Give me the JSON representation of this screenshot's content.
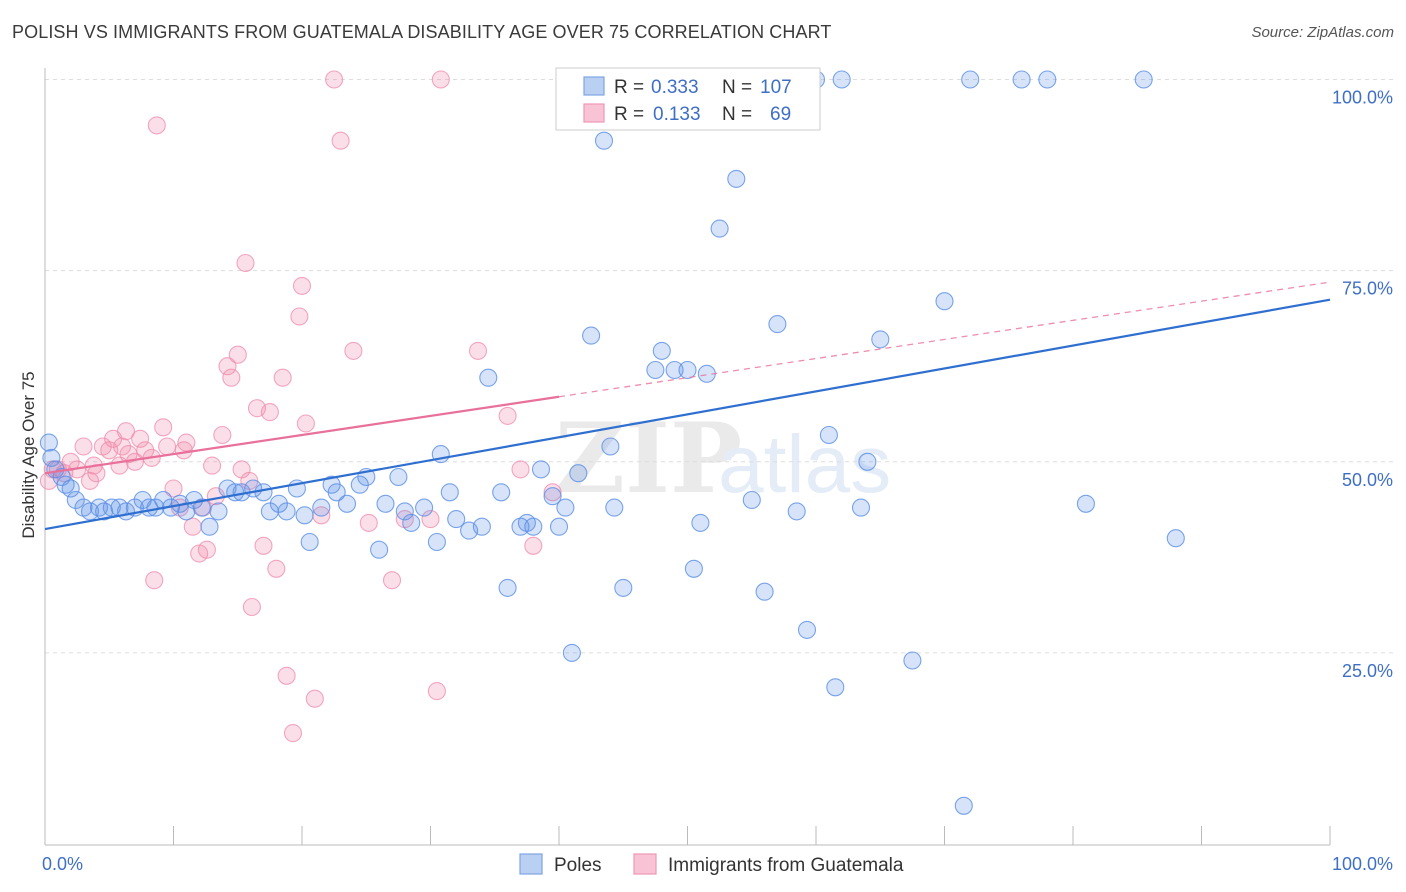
{
  "title": "POLISH VS IMMIGRANTS FROM GUATEMALA DISABILITY AGE OVER 75 CORRELATION CHART",
  "source": "Source: ZipAtlas.com",
  "watermark": {
    "zip": "ZIP",
    "atlas": "atlas"
  },
  "colors": {
    "poles": "#5a8ee6",
    "guatemala": "#f08bab",
    "poles_line": "#2f6fd0",
    "guatemala_line": "#e8709a"
  },
  "legend": {
    "r_label": "R =",
    "n_label": "N =",
    "rows": [
      {
        "r": "0.333",
        "n": "107"
      },
      {
        "r": "0.133",
        "n": "69"
      }
    ]
  },
  "chart_data": {
    "type": "scatter",
    "title": "POLISH VS IMMIGRANTS FROM GUATEMALA DISABILITY AGE OVER 75 CORRELATION CHART",
    "xlabel": "",
    "ylabel": "Disability Age Over 75",
    "xlim": [
      0,
      100
    ],
    "ylim": [
      0,
      100
    ],
    "x_tick_labels": [
      "0.0%",
      "100.0%"
    ],
    "y_ticks": [
      25,
      50,
      75,
      100
    ],
    "y_tick_labels": [
      "25.0%",
      "50.0%",
      "75.0%",
      "100.0%"
    ],
    "grid": true,
    "legend_position": "top-center",
    "series": [
      {
        "name": "Poles",
        "r": 0.333,
        "n": 107,
        "trend": {
          "x0": 0,
          "y0": 41.2,
          "x1": 100,
          "y1": 71.2
        },
        "points": [
          [
            0.3,
            52.5
          ],
          [
            0.5,
            50.5
          ],
          [
            0.8,
            49
          ],
          [
            1.3,
            48
          ],
          [
            1.6,
            47
          ],
          [
            2,
            46.5
          ],
          [
            2.4,
            45
          ],
          [
            3,
            44
          ],
          [
            3.5,
            43.5
          ],
          [
            4.2,
            44
          ],
          [
            4.6,
            43.5
          ],
          [
            5.2,
            44
          ],
          [
            5.8,
            44
          ],
          [
            6.3,
            43.5
          ],
          [
            7,
            44
          ],
          [
            7.6,
            45
          ],
          [
            8.1,
            44
          ],
          [
            8.6,
            44
          ],
          [
            9.2,
            45
          ],
          [
            9.8,
            44
          ],
          [
            10.5,
            44.5
          ],
          [
            11,
            43.5
          ],
          [
            11.6,
            45
          ],
          [
            12.2,
            44
          ],
          [
            12.8,
            41.5
          ],
          [
            13.5,
            43.5
          ],
          [
            14.2,
            46.5
          ],
          [
            14.8,
            46
          ],
          [
            15.3,
            46
          ],
          [
            16.2,
            46.5
          ],
          [
            17,
            46
          ],
          [
            17.5,
            43.5
          ],
          [
            18.2,
            44.5
          ],
          [
            18.8,
            43.5
          ],
          [
            19.6,
            46.5
          ],
          [
            20.2,
            43
          ],
          [
            20.6,
            39.5
          ],
          [
            21.5,
            44
          ],
          [
            22.3,
            47
          ],
          [
            22.7,
            46
          ],
          [
            23.5,
            44.5
          ],
          [
            24.5,
            47
          ],
          [
            25,
            48
          ],
          [
            26,
            38.5
          ],
          [
            26.5,
            44.5
          ],
          [
            27.5,
            48
          ],
          [
            28,
            43.5
          ],
          [
            28.5,
            42
          ],
          [
            29.5,
            44
          ],
          [
            30.5,
            39.5
          ],
          [
            30.8,
            51
          ],
          [
            31.5,
            46
          ],
          [
            32,
            42.5
          ],
          [
            33,
            41
          ],
          [
            34,
            41.5
          ],
          [
            34.5,
            61
          ],
          [
            35.5,
            46
          ],
          [
            36,
            33.5
          ],
          [
            37,
            41.5
          ],
          [
            37.5,
            42
          ],
          [
            38,
            41.5
          ],
          [
            38.6,
            49
          ],
          [
            39.5,
            45.5
          ],
          [
            40,
            41.5
          ],
          [
            40.5,
            44
          ],
          [
            41,
            25
          ],
          [
            41.5,
            48.5
          ],
          [
            42.5,
            66.5
          ],
          [
            43.5,
            92
          ],
          [
            44,
            52
          ],
          [
            44.3,
            44
          ],
          [
            45,
            33.5
          ],
          [
            45.8,
            100
          ],
          [
            47.5,
            62
          ],
          [
            48,
            64.5
          ],
          [
            49,
            62
          ],
          [
            50,
            62
          ],
          [
            50.5,
            36
          ],
          [
            51,
            42
          ],
          [
            51.5,
            61.5
          ],
          [
            52.5,
            80.5
          ],
          [
            53,
            100
          ],
          [
            53.8,
            87
          ],
          [
            55,
            45
          ],
          [
            55.5,
            100
          ],
          [
            56,
            33
          ],
          [
            57,
            68
          ],
          [
            58.5,
            43.5
          ],
          [
            59.3,
            28
          ],
          [
            60,
            100
          ],
          [
            61,
            53.5
          ],
          [
            61.5,
            20.5
          ],
          [
            62,
            100
          ],
          [
            63.5,
            44
          ],
          [
            64,
            50
          ],
          [
            65,
            66
          ],
          [
            67.5,
            24
          ],
          [
            70,
            71
          ],
          [
            71.5,
            5
          ],
          [
            72,
            100
          ],
          [
            76,
            100
          ],
          [
            78,
            100
          ],
          [
            81,
            44.5
          ],
          [
            85.5,
            100
          ],
          [
            88,
            40
          ]
        ]
      },
      {
        "name": "Immigrants from Guatemala",
        "r": 0.133,
        "n": 69,
        "trend": {
          "x0": 0,
          "y0": 48.5,
          "x1": 40,
          "y1": 58.5,
          "dash_x1": 100,
          "dash_y1": 73.5
        },
        "points": [
          [
            0.3,
            47.5
          ],
          [
            0.6,
            49
          ],
          [
            1,
            49
          ],
          [
            1.5,
            48.5
          ],
          [
            2,
            50
          ],
          [
            2.5,
            49
          ],
          [
            3,
            52
          ],
          [
            3.5,
            47.5
          ],
          [
            3.8,
            49.5
          ],
          [
            4,
            48.5
          ],
          [
            4.5,
            52
          ],
          [
            5,
            51.5
          ],
          [
            5.3,
            53
          ],
          [
            5.8,
            49.5
          ],
          [
            6,
            52
          ],
          [
            6.3,
            54
          ],
          [
            6.5,
            51
          ],
          [
            7,
            50
          ],
          [
            7.4,
            53
          ],
          [
            7.8,
            51.5
          ],
          [
            8.3,
            50.5
          ],
          [
            8.5,
            34.5
          ],
          [
            8.7,
            94
          ],
          [
            9.2,
            54.5
          ],
          [
            9.5,
            52
          ],
          [
            10,
            46.5
          ],
          [
            10.5,
            44
          ],
          [
            10.8,
            51.5
          ],
          [
            11,
            52.5
          ],
          [
            11.5,
            41.5
          ],
          [
            12,
            38
          ],
          [
            12.3,
            44
          ],
          [
            12.6,
            38.5
          ],
          [
            13,
            49.5
          ],
          [
            13.3,
            45.5
          ],
          [
            13.8,
            53.5
          ],
          [
            14.2,
            62.5
          ],
          [
            14.5,
            61
          ],
          [
            15,
            64
          ],
          [
            15.3,
            49
          ],
          [
            15.6,
            76
          ],
          [
            15.9,
            47.5
          ],
          [
            16.1,
            31
          ],
          [
            16.5,
            57
          ],
          [
            17,
            39
          ],
          [
            17.5,
            56.5
          ],
          [
            18,
            36
          ],
          [
            18.5,
            61
          ],
          [
            18.8,
            22
          ],
          [
            19.3,
            14.5
          ],
          [
            19.8,
            69
          ],
          [
            20,
            73
          ],
          [
            20.3,
            55
          ],
          [
            21,
            19
          ],
          [
            21.5,
            43
          ],
          [
            22.5,
            100
          ],
          [
            23,
            92
          ],
          [
            24,
            64.5
          ],
          [
            25.2,
            42
          ],
          [
            27,
            34.5
          ],
          [
            28,
            42.5
          ],
          [
            30,
            42.5
          ],
          [
            30.5,
            20
          ],
          [
            30.8,
            100
          ],
          [
            33.7,
            64.5
          ],
          [
            36,
            56
          ],
          [
            37,
            49
          ],
          [
            38,
            39
          ],
          [
            39.5,
            46
          ]
        ]
      }
    ]
  },
  "bottom_legend": [
    "Poles",
    "Immigrants from Guatemala"
  ]
}
